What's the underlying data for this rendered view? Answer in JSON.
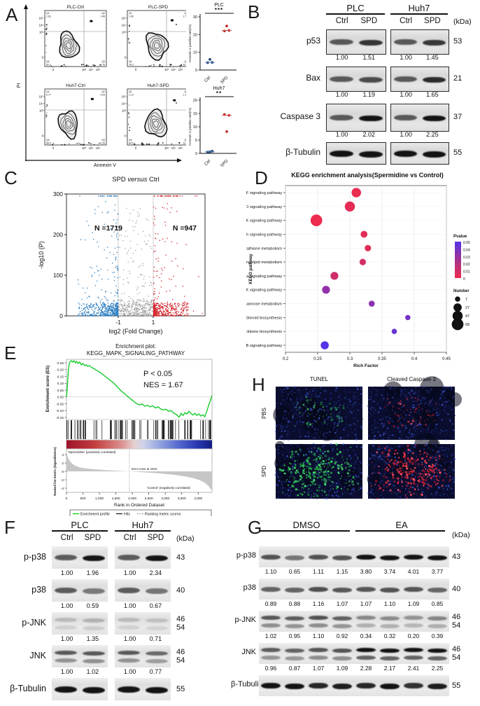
{
  "panel_labels": {
    "A": "A",
    "B": "B",
    "C": "C",
    "D": "D",
    "E": "E",
    "F": "F",
    "G": "G",
    "H": "H"
  },
  "panel_a": {
    "flow_plots": [
      {
        "title": "PLC-Ctrl",
        "q1_label": "Q1",
        "q1": "1.63",
        "q2_label": "Q2",
        "q2": "1.48",
        "q4_label": "Q4",
        "q4": "92.2",
        "q3_label": "Q3",
        "q3": "4.70",
        "shift": 0
      },
      {
        "title": "PLC-SPD",
        "q1_label": "Q1",
        "q1": "1.49",
        "q2_label": "Q2",
        "q2": "1.76",
        "q4_label": "Q4",
        "q4": "76.3",
        "q3_label": "Q3",
        "q3": "20.4",
        "shift": 8
      },
      {
        "title": "Huh7-Ctrl",
        "q1_label": "Q1",
        "q1": "0.77",
        "q2_label": "Q2",
        "q2": "0.53",
        "q4_label": "Q4",
        "q4": "98.5",
        "q3_label": "Q3",
        "q3": "0.25",
        "shift": 0
      },
      {
        "title": "Huh7-SPD",
        "q1_label": "Q1",
        "q1": "1.13",
        "q2_label": "Q2",
        "q2": "1.19",
        "q4_label": "Q4",
        "q4": "84.5",
        "q3_label": "Q3",
        "q3": "13.2",
        "shift": 7
      }
    ],
    "axes": {
      "x_label": "Annexin V",
      "y_label": "PI",
      "y_ticks": [
        "10⁵",
        "10⁴",
        "10³",
        "0"
      ],
      "x_ticks": [
        "0",
        "10³",
        "10⁴",
        "10⁵"
      ]
    },
    "scatters": [
      {
        "title": "PLC",
        "sig": "***",
        "y_label": "Annexin V positive rate(%)",
        "y_ticks": [
          0,
          10,
          20,
          30
        ],
        "y_max": 30,
        "groups": [
          "Ctrl",
          "SPD"
        ],
        "ctrl_values": [
          4.2,
          4.3,
          6.0
        ],
        "spd_values": [
          22.0,
          22.3,
          24.8
        ],
        "ctrl_median": 4.3,
        "spd_median": 22.3
      },
      {
        "title": "Huh7",
        "sig": "**",
        "y_label": "Annexin V positive rate(%)",
        "y_ticks": [
          0,
          5,
          10,
          15,
          20
        ],
        "y_max": 20,
        "groups": [
          "Ctrl",
          "SPD"
        ],
        "ctrl_values": [
          0.5,
          0.8,
          0.6
        ],
        "spd_values": [
          14.6,
          14.3,
          8.2
        ],
        "ctrl_median": 0.6,
        "spd_median": 14.3
      }
    ],
    "colors": {
      "ctrl": "#23406b",
      "spd": "#c02a28",
      "ctrl_line": "#5b84c4",
      "spd_line": "#d05c56"
    }
  },
  "panel_b": {
    "groups": [
      "PLC",
      "Huh7"
    ],
    "lanes": [
      "Ctrl",
      "SPD",
      "Ctrl",
      "SPD"
    ],
    "kda_header": "(kDa)",
    "rows": [
      {
        "protein": "p53",
        "kda": [
          "53"
        ],
        "values": [
          [
            "1.00",
            "1.51"
          ],
          [
            "1.00",
            "1.45"
          ]
        ]
      },
      {
        "protein": "Bax",
        "kda": [
          "21"
        ],
        "values": [
          [
            "1.00",
            "1.19"
          ],
          [
            "1.00",
            "1.65"
          ]
        ]
      },
      {
        "protein": "Caspase 3",
        "kda": [
          "37"
        ],
        "values": [
          [
            "1.00",
            "2.02"
          ],
          [
            "1.00",
            "2.25"
          ]
        ]
      },
      {
        "protein": "β-Tubulin",
        "kda": [
          "55"
        ],
        "values": []
      }
    ]
  },
  "panel_f": {
    "groups": [
      "PLC",
      "Huh7"
    ],
    "lanes": [
      "Ctrl",
      "SPD",
      "Ctrl",
      "SPD"
    ],
    "kda_header": "(kDa)",
    "rows": [
      {
        "protein": "p-p38",
        "kda": [
          "43"
        ],
        "values": [
          [
            "1.00",
            "1.96"
          ],
          [
            "1.00",
            "2.34"
          ]
        ]
      },
      {
        "protein": "p38",
        "kda": [
          "40"
        ],
        "values": [
          [
            "1.00",
            "0.59"
          ],
          [
            "1.00",
            "0.67"
          ]
        ]
      },
      {
        "protein": "p-JNK",
        "kda": [
          "46",
          "54"
        ],
        "faint": true,
        "values": [
          [
            "1.00",
            "1.35"
          ],
          [
            "1.00",
            "0.71"
          ]
        ]
      },
      {
        "protein": "JNK",
        "kda": [
          "46",
          "54"
        ],
        "values": [
          [
            "1.00",
            "1.02"
          ],
          [
            "1.00",
            "0.77"
          ]
        ]
      },
      {
        "protein": "β-Tubulin",
        "kda": [
          "55"
        ],
        "values": []
      }
    ]
  },
  "panel_g": {
    "groups": [
      "DMSO",
      "EA"
    ],
    "kda_header": "(kDa)",
    "rows": [
      {
        "protein": "p-p38",
        "kda": [
          "43"
        ],
        "values": [
          "1.10",
          "0.65",
          "1.11",
          "1.15",
          "3.80",
          "3.74",
          "4.01",
          "3.77"
        ]
      },
      {
        "protein": "p38",
        "kda": [
          "40"
        ],
        "values": [
          "0.89",
          "0.88",
          "1.16",
          "1.07",
          "1.07",
          "1.10",
          "1.09",
          "0.85"
        ]
      },
      {
        "protein": "p-JNK",
        "kda": [
          "46",
          "54"
        ],
        "values": [
          "1.02",
          "0.95",
          "1.10",
          "0.92",
          "0.34",
          "0.32",
          "0.20",
          "0.39"
        ]
      },
      {
        "protein": "JNK",
        "kda": [
          "46",
          "54"
        ],
        "values": [
          "0.96",
          "0.87",
          "1.07",
          "1.09",
          "2.28",
          "2.17",
          "2.41",
          "2.25"
        ]
      },
      {
        "protein": "β-Tubulin",
        "kda": [
          "55"
        ],
        "values": []
      }
    ]
  },
  "panel_h": {
    "col_headers": [
      "TUNEL",
      "Cleaved Caspase 3"
    ],
    "row_labels": [
      "PBS",
      "SPD"
    ],
    "colors": {
      "background": "#0a0d2e",
      "blue": "#2a3da8",
      "green": "#35d45f",
      "red": "#e02838"
    }
  },
  "chart_data": [
    {
      "id": "volcano",
      "type": "scatter",
      "panel": "C",
      "title_parts": [
        "SPD ",
        "versus",
        " Ctrl"
      ],
      "xlabel": "log2 (Fold Change)",
      "ylabel": "-log10 (P)",
      "x_ticks": [
        "-1",
        "1"
      ],
      "y_ticks": [
        "0",
        "100",
        "200",
        "300"
      ],
      "xlim": [
        -4,
        4
      ],
      "ylim": [
        0,
        300
      ],
      "cap_y": 295,
      "down": {
        "n": 1719,
        "label": "N =1719",
        "color": "#2f7fc1"
      },
      "up": {
        "n": 947,
        "label": "N =947",
        "color": "#d2232a"
      },
      "ns_color": "#a3a3a3",
      "threshold_abs_log2fc": 1
    },
    {
      "id": "kegg",
      "type": "bubble",
      "panel": "D",
      "title": "KEGG enrichment analysis(Spermidine vs Control)",
      "xlabel": "Rich Factor",
      "ylabel": "KEGG pathway",
      "x_ticks": [
        0.2,
        0.25,
        0.3,
        0.35,
        0.4,
        0.45
      ],
      "pathways": [
        {
          "name": "TNF signaling pathway",
          "rich_factor": 0.31,
          "pvalue": 0.002,
          "number": 40
        },
        {
          "name": "FoxO signaling pathway",
          "rich_factor": 0.3,
          "pvalue": 0.003,
          "number": 47
        },
        {
          "name": "MAPK signaling pathway",
          "rich_factor": 0.248,
          "pvalue": 0.001,
          "number": 68
        },
        {
          "name": "Notch signaling pathway",
          "rich_factor": 0.322,
          "pvalue": 0.004,
          "number": 16
        },
        {
          "name": "Glutathione metabolism",
          "rich_factor": 0.328,
          "pvalue": 0.004,
          "number": 13
        },
        {
          "name": "Sphingolipid metabolism",
          "rich_factor": 0.32,
          "pvalue": 0.008,
          "number": 13
        },
        {
          "name": "TGF-beta signaling pathway",
          "rich_factor": 0.276,
          "pvalue": 0.01,
          "number": 24
        },
        {
          "name": "AMPK signaling pathway",
          "rich_factor": 0.263,
          "pvalue": 0.03,
          "number": 24
        },
        {
          "name": "Fructose and mannose metabolism",
          "rich_factor": 0.334,
          "pvalue": 0.032,
          "number": 11
        },
        {
          "name": "Steroid biosynthesis",
          "rich_factor": 0.39,
          "pvalue": 0.04,
          "number": 7
        },
        {
          "name": "Terpenoid backbone biosynthesis",
          "rich_factor": 0.369,
          "pvalue": 0.044,
          "number": 7
        },
        {
          "name": "NF-kappa B signaling pathway",
          "rich_factor": 0.261,
          "pvalue": 0.05,
          "number": 26
        }
      ],
      "legend": {
        "pvalue_title": "Pvalue",
        "pvalue_ticks": [
          "0.05",
          "0.04",
          "0.03",
          "0.02",
          "0.01",
          "0"
        ],
        "number_title": "Number",
        "numbers": [
          7,
          27,
          47,
          68
        ]
      }
    },
    {
      "id": "gsea",
      "type": "line",
      "panel": "E",
      "title_line1": "Enrichment plot:",
      "title_line2": "KEGG_MAPK_SIGNALING_PATHWAY",
      "stats": [
        "P < 0.05",
        "NES = 1.67"
      ],
      "ylabel_top": "Enrichment score (ES)",
      "ylabel_bottom": "Ranked list metric (Signal2Noise)",
      "es_ticks": [
        "0.25",
        "0.20",
        "0.15",
        "0.10",
        "0.05",
        "0.00",
        "-0.05",
        "-0.10",
        "-0.15"
      ],
      "metric_ticks": [
        "4",
        "2",
        "0",
        "-2",
        "-4"
      ],
      "x_ticks": [
        "0",
        "500",
        "1,000",
        "1,500",
        "2,000",
        "2,500",
        "3,000",
        "3,500",
        "4,000"
      ],
      "xlabel": "Rank in Ordered Dataset",
      "pos_label": "'Spermidine' (positively correlated)",
      "neg_label": "'Control' (negatively correlated)",
      "zero_cross": "Zero cross at 1910",
      "legend": [
        "Enrichment profile",
        "Hits",
        "Ranking metric scores"
      ],
      "curve_color": "#17cc2c",
      "es_curve": [
        [
          0,
          0
        ],
        [
          20,
          0.05
        ],
        [
          50,
          0.17
        ],
        [
          80,
          0.24
        ],
        [
          110,
          0.26
        ],
        [
          150,
          0.265
        ],
        [
          190,
          0.255
        ],
        [
          230,
          0.265
        ],
        [
          270,
          0.25
        ],
        [
          310,
          0.26
        ],
        [
          350,
          0.245
        ],
        [
          400,
          0.255
        ],
        [
          450,
          0.235
        ],
        [
          500,
          0.245
        ],
        [
          550,
          0.23
        ],
        [
          600,
          0.235
        ],
        [
          650,
          0.225
        ],
        [
          700,
          0.23
        ],
        [
          760,
          0.215
        ],
        [
          820,
          0.21
        ],
        [
          880,
          0.2
        ],
        [
          950,
          0.19
        ],
        [
          1020,
          0.18
        ],
        [
          1100,
          0.165
        ],
        [
          1180,
          0.15
        ],
        [
          1260,
          0.135
        ],
        [
          1340,
          0.12
        ],
        [
          1420,
          0.105
        ],
        [
          1500,
          0.085
        ],
        [
          1580,
          0.065
        ],
        [
          1660,
          0.045
        ],
        [
          1740,
          0.028
        ],
        [
          1820,
          0.012
        ],
        [
          1900,
          -0.005
        ],
        [
          1980,
          -0.02
        ],
        [
          2060,
          -0.035
        ],
        [
          2140,
          -0.05
        ],
        [
          2220,
          -0.058
        ],
        [
          2300,
          -0.052
        ],
        [
          2380,
          -0.068
        ],
        [
          2460,
          -0.06
        ],
        [
          2540,
          -0.072
        ],
        [
          2620,
          -0.065
        ],
        [
          2700,
          -0.08
        ],
        [
          2780,
          -0.072
        ],
        [
          2860,
          -0.088
        ],
        [
          2940,
          -0.095
        ],
        [
          3020,
          -0.09
        ],
        [
          3100,
          -0.105
        ],
        [
          3180,
          -0.1
        ],
        [
          3260,
          -0.118
        ],
        [
          3340,
          -0.13
        ],
        [
          3420,
          -0.148
        ],
        [
          3480,
          -0.12
        ],
        [
          3540,
          -0.135
        ],
        [
          3600,
          -0.115
        ],
        [
          3660,
          -0.125
        ],
        [
          3720,
          -0.105
        ],
        [
          3780,
          -0.12
        ],
        [
          3840,
          -0.132
        ],
        [
          3900,
          -0.12
        ],
        [
          3960,
          -0.135
        ],
        [
          4020,
          -0.125
        ],
        [
          4080,
          -0.14
        ],
        [
          4140,
          -0.13
        ],
        [
          4200,
          -0.145
        ],
        [
          4260,
          -0.105
        ],
        [
          4320,
          -0.06
        ],
        [
          4380,
          -0.02
        ],
        [
          4420,
          0.01
        ]
      ],
      "rank_metric": [
        [
          0,
          4.6
        ],
        [
          40,
          3.4
        ],
        [
          90,
          2.6
        ],
        [
          150,
          2.0
        ],
        [
          220,
          1.55
        ],
        [
          300,
          1.2
        ],
        [
          400,
          0.95
        ],
        [
          550,
          0.75
        ],
        [
          700,
          0.6
        ],
        [
          900,
          0.45
        ],
        [
          1100,
          0.33
        ],
        [
          1350,
          0.22
        ],
        [
          1600,
          0.12
        ],
        [
          1910,
          0
        ],
        [
          2150,
          -0.12
        ],
        [
          2400,
          -0.25
        ],
        [
          2700,
          -0.4
        ],
        [
          3000,
          -0.6
        ],
        [
          3300,
          -0.85
        ],
        [
          3600,
          -1.2
        ],
        [
          3850,
          -1.6
        ],
        [
          4050,
          -2.1
        ],
        [
          4200,
          -2.7
        ],
        [
          4300,
          -3.4
        ],
        [
          4380,
          -4.2
        ],
        [
          4420,
          -4.6
        ]
      ]
    }
  ]
}
